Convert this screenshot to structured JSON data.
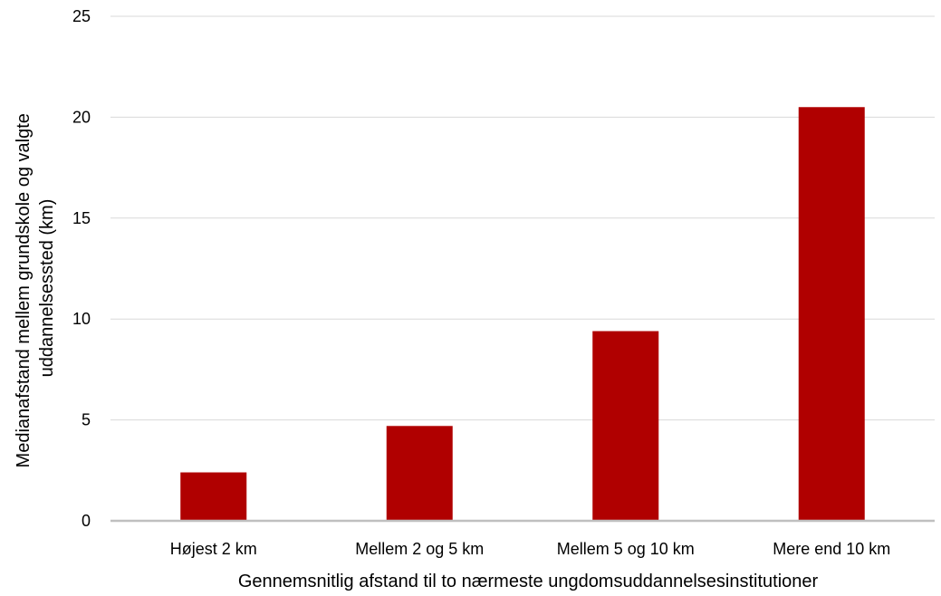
{
  "chart_data": {
    "type": "bar",
    "categories": [
      "Højest 2 km",
      "Mellem 2 og 5 km",
      "Mellem 5 og 10 km",
      "Mere end 10 km"
    ],
    "values": [
      2.4,
      4.7,
      9.4,
      20.5
    ],
    "xlabel": "Gennemsnitlig afstand til to nærmeste ungdomsuddannelsesinstitutioner",
    "ylabel": [
      "Medianafstand mellem grundskole og valgte",
      "uddannelsessted (km)"
    ],
    "ylim": [
      0,
      25
    ],
    "yticks": [
      0,
      5,
      10,
      15,
      20,
      25
    ],
    "grid": true,
    "legend": "none",
    "colors": {
      "bar": "#b00000",
      "grid": "#d9d9d9",
      "axis": "#bfbfbf"
    }
  }
}
